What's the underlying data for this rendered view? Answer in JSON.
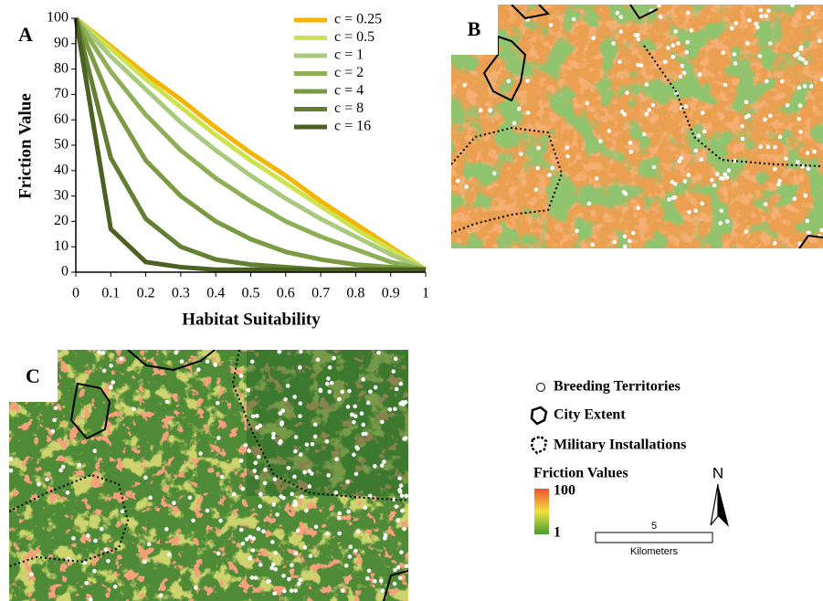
{
  "chart_data": {
    "type": "line",
    "panel_label": "A",
    "xlabel": "Habitat Suitability",
    "ylabel": "Friction  Value",
    "x": [
      0,
      0.1,
      0.2,
      0.3,
      0.4,
      0.5,
      0.6,
      0.7,
      0.8,
      0.9,
      1
    ],
    "xlim": [
      0,
      1
    ],
    "xticks": [
      0,
      0.1,
      0.2,
      0.3,
      0.4,
      0.5,
      0.6,
      0.7,
      0.8,
      0.9,
      1
    ],
    "ylim": [
      0,
      100
    ],
    "yticks": [
      0,
      10,
      20,
      30,
      40,
      50,
      60,
      70,
      80,
      90,
      100
    ],
    "legend": "upper right",
    "series": [
      {
        "name": "c = 0.25",
        "color": "#f4b400",
        "values": [
          100,
          89,
          78,
          68,
          57,
          47,
          38,
          28,
          19,
          10,
          1
        ]
      },
      {
        "name": "c = 0.5",
        "color": "#cde24c",
        "values": [
          100,
          88,
          76,
          65,
          54,
          44,
          35,
          26,
          17,
          9,
          1
        ]
      },
      {
        "name": "c = 1",
        "color": "#a9c97e",
        "values": [
          100,
          85,
          72,
          59,
          48,
          38,
          29,
          21,
          14,
          7,
          1
        ]
      },
      {
        "name": "c = 2",
        "color": "#8daf55",
        "values": [
          100,
          79,
          62,
          48,
          37,
          28,
          20,
          14,
          9,
          4,
          1
        ]
      },
      {
        "name": "c = 4",
        "color": "#7b9b42",
        "values": [
          100,
          67,
          44,
          30,
          20,
          13,
          8,
          5,
          3,
          2,
          1
        ]
      },
      {
        "name": "c = 8",
        "color": "#637f33",
        "values": [
          100,
          45,
          21,
          10,
          5,
          3,
          2,
          1,
          1,
          1,
          1
        ]
      },
      {
        "name": "c = 16",
        "color": "#4b6121",
        "values": [
          100,
          17,
          4,
          2,
          1,
          1,
          1,
          1,
          1,
          1,
          1
        ]
      }
    ]
  },
  "panels": {
    "b_label": "B",
    "c_label": "C"
  },
  "map_legend": {
    "breeding": "Breeding Territories",
    "city": "City Extent",
    "military": "Military Installations",
    "friction_title": "Friction Values",
    "friction_high": "100",
    "friction_low": "1",
    "north": "N",
    "scale_value": "5",
    "scale_unit": "Kilometers"
  }
}
